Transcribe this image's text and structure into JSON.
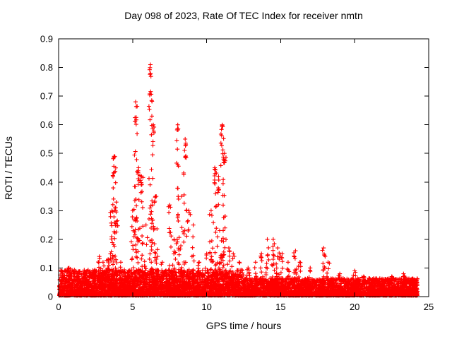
{
  "chart_data": {
    "type": "scatter",
    "title": "Day 098 of 2023, Rate Of TEC Index for receiver nmtn",
    "xlabel": "GPS time / hours",
    "ylabel": "ROTI / TECUs",
    "xlim": [
      0,
      25
    ],
    "ylim": [
      0,
      0.9
    ],
    "xticks": [
      0,
      5,
      10,
      15,
      20,
      25
    ],
    "yticks": [
      0,
      0.1,
      0.2,
      0.3,
      0.4,
      0.5,
      0.6,
      0.7,
      0.8,
      0.9
    ],
    "grid": false,
    "legend": "none",
    "marker": "plus",
    "color": "#ff0000",
    "axis_color": "#000000",
    "background_color": "#ffffff",
    "seed": 20230981,
    "baseline": {
      "description": "dense noise floor of ROTI values across whole day",
      "x_range": [
        0.02,
        24.25
      ],
      "y_typical": [
        0.0,
        0.05
      ],
      "y_max_busy": 0.09,
      "y_max_quiet": 0.06,
      "busy_until_hour": 12.5,
      "count": 6000
    },
    "spike_format": [
      "x_hours",
      "peak_roti_tecu",
      "point_count"
    ],
    "spikes": [
      [
        0.7,
        0.1,
        20
      ],
      [
        1.3,
        0.07,
        12
      ],
      [
        1.9,
        0.08,
        12
      ],
      [
        2.4,
        0.09,
        15
      ],
      [
        2.75,
        0.14,
        25
      ],
      [
        3.0,
        0.12,
        18
      ],
      [
        3.35,
        0.13,
        22
      ],
      [
        3.6,
        0.3,
        22
      ],
      [
        3.75,
        0.49,
        30
      ],
      [
        3.9,
        0.33,
        18
      ],
      [
        4.2,
        0.12,
        12
      ],
      [
        4.7,
        0.09,
        12
      ],
      [
        5.0,
        0.3,
        20
      ],
      [
        5.2,
        0.68,
        35
      ],
      [
        5.4,
        0.45,
        22
      ],
      [
        5.6,
        0.42,
        18
      ],
      [
        5.9,
        0.25,
        14
      ],
      [
        6.2,
        0.81,
        40
      ],
      [
        6.4,
        0.6,
        22
      ],
      [
        6.6,
        0.35,
        16
      ],
      [
        7.0,
        0.12,
        12
      ],
      [
        7.5,
        0.32,
        18
      ],
      [
        7.8,
        0.2,
        12
      ],
      [
        8.05,
        0.6,
        26
      ],
      [
        8.3,
        0.35,
        16
      ],
      [
        8.55,
        0.55,
        22
      ],
      [
        8.8,
        0.3,
        14
      ],
      [
        9.1,
        0.25,
        12
      ],
      [
        9.5,
        0.12,
        12
      ],
      [
        10.0,
        0.15,
        12
      ],
      [
        10.3,
        0.3,
        16
      ],
      [
        10.55,
        0.45,
        24
      ],
      [
        10.8,
        0.42,
        20
      ],
      [
        11.05,
        0.6,
        30
      ],
      [
        11.2,
        0.5,
        18
      ],
      [
        11.5,
        0.17,
        16
      ],
      [
        11.8,
        0.15,
        12
      ],
      [
        12.2,
        0.12,
        12
      ],
      [
        12.8,
        0.1,
        12
      ],
      [
        13.3,
        0.12,
        12
      ],
      [
        13.7,
        0.15,
        12
      ],
      [
        14.1,
        0.2,
        16
      ],
      [
        14.5,
        0.2,
        20
      ],
      [
        14.8,
        0.17,
        16
      ],
      [
        15.1,
        0.15,
        12
      ],
      [
        15.5,
        0.12,
        12
      ],
      [
        16.0,
        0.16,
        16
      ],
      [
        16.3,
        0.12,
        12
      ],
      [
        17.0,
        0.1,
        12
      ],
      [
        17.9,
        0.17,
        20
      ],
      [
        18.2,
        0.12,
        12
      ],
      [
        19.0,
        0.08,
        8
      ],
      [
        20.0,
        0.09,
        10
      ],
      [
        20.6,
        0.07,
        8
      ],
      [
        21.5,
        0.06,
        8
      ],
      [
        22.5,
        0.07,
        8
      ],
      [
        23.3,
        0.08,
        8
      ],
      [
        24.0,
        0.06,
        8
      ]
    ]
  }
}
